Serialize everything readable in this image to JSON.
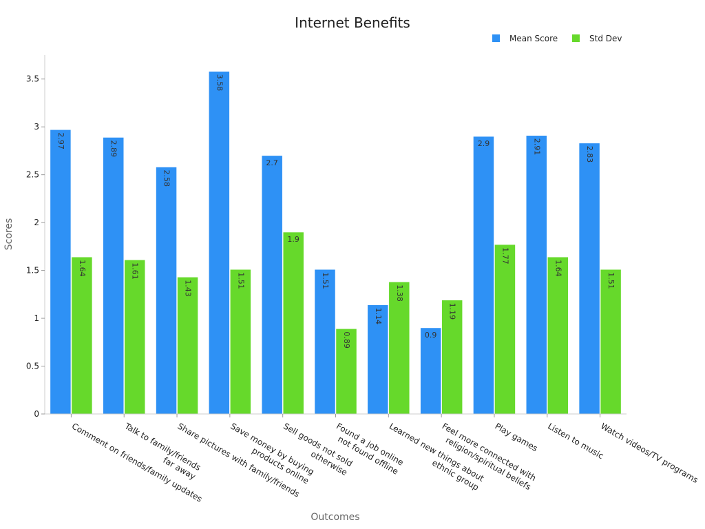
{
  "chart_data": {
    "type": "bar",
    "title": "Internet Benefits",
    "xlabel": "Outcomes",
    "ylabel": "Scores",
    "ylim": [
      0,
      3.75
    ],
    "yticks": [
      0,
      0.5,
      1,
      1.5,
      2,
      2.5,
      3,
      3.5
    ],
    "ytick_labels": [
      "0",
      "0.5",
      "1",
      "1.5",
      "2",
      "2.5",
      "3",
      "3.5"
    ],
    "grid": false,
    "legend_position": "top-right",
    "categories": [
      [
        "Comment on friends/family updates"
      ],
      [
        "Talk to family/friends",
        "far away"
      ],
      [
        "Share pictures with family/friends"
      ],
      [
        "Save money by buying",
        "products online"
      ],
      [
        "Sell goods not sold",
        "otherwise"
      ],
      [
        "Found a job online",
        "not found offline"
      ],
      [
        "Learned new things about",
        "ethnic group"
      ],
      [
        "Feel more connected with",
        "religion/spiritual beliefs"
      ],
      [
        "Play games"
      ],
      [
        "Listen to music"
      ],
      [
        "Watch videos/TV programs"
      ]
    ],
    "series": [
      {
        "name": "Mean Score",
        "color": "#2e91f5",
        "values": [
          2.97,
          2.89,
          2.58,
          3.58,
          2.7,
          1.51,
          1.14,
          0.9,
          2.9,
          2.91,
          2.83
        ],
        "labels": [
          "2.97",
          "2.89",
          "2.58",
          "3.58",
          "2.7",
          "1.51",
          "1.14",
          "0.9",
          "2.9",
          "2.91",
          "2.83"
        ],
        "label_rotated": [
          true,
          true,
          true,
          true,
          false,
          true,
          true,
          false,
          false,
          true,
          true
        ]
      },
      {
        "name": "Std Dev",
        "color": "#66d92b",
        "values": [
          1.64,
          1.61,
          1.43,
          1.51,
          1.9,
          0.89,
          1.38,
          1.19,
          1.77,
          1.64,
          1.51
        ],
        "labels": [
          "1.64",
          "1.61",
          "1.43",
          "1.51",
          "1.9",
          "0.89",
          "1.38",
          "1.19",
          "1.77",
          "1.64",
          "1.51"
        ],
        "label_rotated": [
          true,
          true,
          true,
          true,
          false,
          true,
          true,
          true,
          true,
          true,
          true
        ]
      }
    ]
  }
}
